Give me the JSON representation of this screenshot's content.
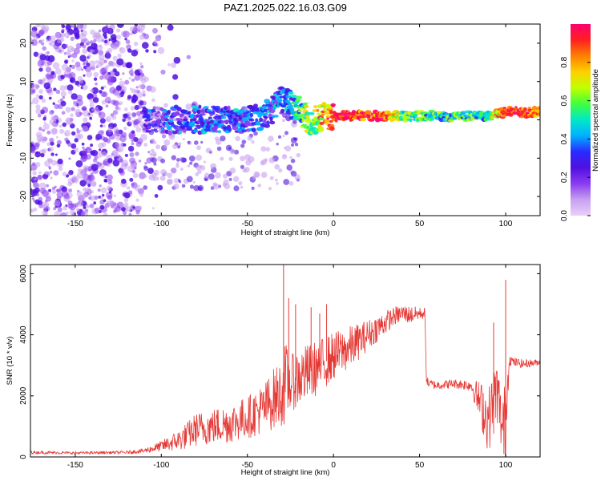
{
  "title": "PAZ1.2025.022.16.03.G09",
  "colors": {
    "snr_line": "#e53935",
    "background": "#ffffff",
    "axis": "#000000",
    "noise_speckle": "#b78cf0",
    "signal_dot": "#6a1de0",
    "colormap": [
      "#e8d0f8",
      "#c8a0f0",
      "#8a3cf0",
      "#5010e0",
      "#2a2aff",
      "#00b0ff",
      "#00e8c8",
      "#40ff40",
      "#c0ff00",
      "#ffd000",
      "#ff8000",
      "#ff2020",
      "#ff0070"
    ]
  },
  "chart_data": [
    {
      "type": "heatmap",
      "title": "PAZ1.2025.022.16.03.G09",
      "xlabel": "Height of straight line (km)",
      "ylabel": "Frequency (Hz)",
      "xlim": [
        -176,
        120
      ],
      "ylim": [
        -25,
        25
      ],
      "xticks": [
        -150,
        -100,
        -50,
        0,
        50,
        100
      ],
      "yticks": [
        -20,
        -10,
        0,
        10,
        20
      ],
      "grid": false,
      "colorbar": {
        "label": "Normalized spectral amplitude",
        "range": [
          0,
          1
        ],
        "ticks": [
          0.0,
          0.2,
          0.4,
          0.6,
          0.8
        ]
      },
      "signal_ridge": {
        "description_points_x": [
          -110,
          -100,
          -90,
          -80,
          -70,
          -60,
          -50,
          -40,
          -30,
          -25,
          -20,
          -15,
          -10,
          -5,
          0,
          10,
          20,
          30,
          40,
          50,
          60,
          70,
          80,
          90,
          100,
          110,
          120
        ],
        "frequency": [
          0,
          0,
          0,
          0,
          0,
          0,
          0,
          1,
          5,
          4,
          3,
          0,
          0,
          1,
          1,
          1,
          1,
          1,
          1,
          1,
          1,
          1,
          1,
          1,
          2,
          2,
          2
        ],
        "amplitude": [
          0.2,
          0.25,
          0.3,
          0.3,
          0.3,
          0.3,
          0.3,
          0.3,
          0.35,
          0.4,
          0.5,
          0.6,
          0.65,
          0.8,
          0.95,
          0.95,
          0.9,
          0.85,
          0.6,
          0.55,
          0.5,
          0.5,
          0.55,
          0.5,
          0.95,
          0.9,
          0.85
        ]
      }
    },
    {
      "type": "line",
      "xlabel": "Height of straight line (km)",
      "ylabel": "SNR (10 * v/v)",
      "xlim": [
        -176,
        120
      ],
      "ylim": [
        0,
        6300
      ],
      "xticks": [
        -150,
        -100,
        -50,
        0,
        50,
        100
      ],
      "yticks": [
        0,
        2000,
        4000,
        6000
      ],
      "grid": false,
      "series": [
        {
          "x": [
            -176,
            -150,
            -120,
            -110,
            -100,
            -90,
            -85,
            -80,
            -70,
            -60,
            -50,
            -40,
            -35,
            -30,
            -28,
            -25,
            -20,
            -10,
            0,
            10,
            20,
            30,
            35,
            40,
            45,
            50,
            53,
            54,
            55,
            60,
            70,
            80,
            85,
            90,
            95,
            98,
            100,
            102,
            105,
            110,
            120
          ],
          "y": [
            150,
            130,
            150,
            200,
            350,
            550,
            700,
            900,
            1000,
            1100,
            1300,
            1600,
            1900,
            2100,
            2400,
            2400,
            2600,
            2900,
            3300,
            3600,
            4000,
            4400,
            4600,
            4700,
            4650,
            4700,
            4700,
            2600,
            2400,
            2350,
            2400,
            2350,
            1800,
            1200,
            2200,
            900,
            1200,
            3200,
            3100,
            3050,
            3100
          ],
          "spread": [
            50,
            40,
            50,
            80,
            180,
            350,
            450,
            550,
            600,
            650,
            700,
            850,
            1000,
            1100,
            1400,
            900,
            1000,
            900,
            800,
            700,
            500,
            400,
            300,
            300,
            300,
            200,
            200,
            200,
            150,
            150,
            150,
            200,
            700,
            1100,
            1100,
            1000,
            1500,
            200,
            150,
            150,
            100
          ]
        }
      ],
      "spikes": [
        {
          "x": -29,
          "y": 6300
        },
        {
          "x": -26,
          "y": 5200
        },
        {
          "x": -22,
          "y": 5000
        },
        {
          "x": -13,
          "y": 4900
        },
        {
          "x": -8,
          "y": 4700
        },
        {
          "x": -4,
          "y": 5000
        },
        {
          "x": 100,
          "y": 5800
        },
        {
          "x": 93,
          "y": 4400
        },
        {
          "x": 99,
          "y": 100
        }
      ]
    }
  ]
}
